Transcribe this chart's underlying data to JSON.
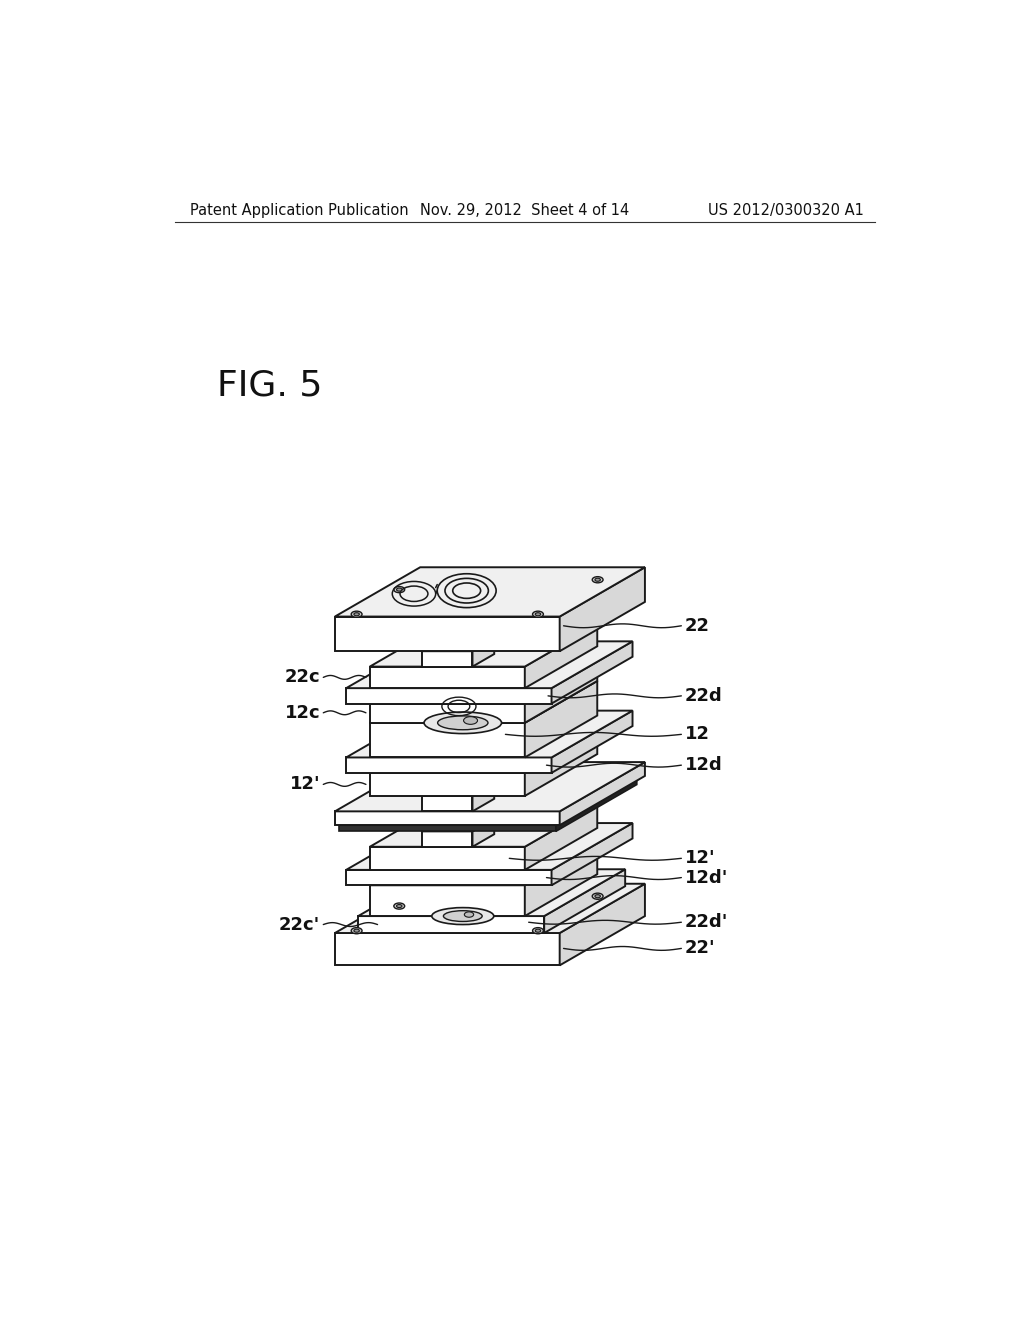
{
  "background_color": "#ffffff",
  "header_left": "Patent Application Publication",
  "header_center": "Nov. 29, 2012  Sheet 4 of 14",
  "header_right": "US 2012/0300320 A1",
  "figure_label": "FIG. 5",
  "header_fontsize": 10.5,
  "fig_label_fontsize": 26,
  "label_fontsize": 13,
  "line_color": "#1a1a1a",
  "line_width": 1.4,
  "face_color": "#ffffff",
  "shade_color": "#e8e8e8",
  "dark_line": "#111111"
}
